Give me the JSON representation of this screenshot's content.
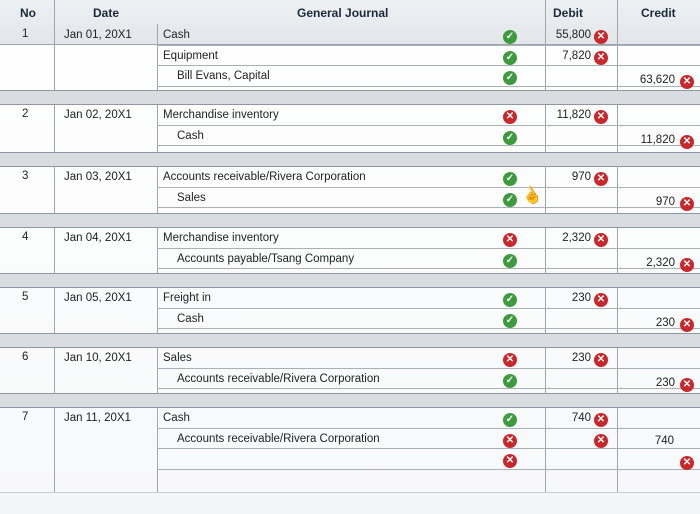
{
  "header": {
    "no": "No",
    "date": "Date",
    "title": "General Journal",
    "debit": "Debit",
    "credit": "Credit"
  },
  "entries": [
    {
      "no": "1",
      "date": "Jan 01, 20X1",
      "lines": [
        {
          "account": "Cash",
          "indent": false,
          "mark": "check",
          "debit": "55,800",
          "credit": ""
        },
        {
          "account": "Equipment",
          "indent": false,
          "mark": "check",
          "debit": "7,820",
          "credit": ""
        },
        {
          "account": "Bill Evans, Capital",
          "indent": true,
          "mark": "check",
          "debit": "",
          "credit": "63,620"
        }
      ]
    },
    {
      "no": "2",
      "date": "Jan 02, 20X1",
      "lines": [
        {
          "account": "Merchandise inventory",
          "indent": false,
          "mark": "error",
          "debit": "11,820",
          "credit": ""
        },
        {
          "account": "Cash",
          "indent": true,
          "mark": "check",
          "debit": "",
          "credit": "11,820"
        }
      ]
    },
    {
      "no": "3",
      "date": "Jan 03, 20X1",
      "lines": [
        {
          "account": "Accounts receivable/Rivera Corporation",
          "indent": false,
          "mark": "check",
          "debit": "970",
          "credit": ""
        },
        {
          "account": "Sales",
          "indent": true,
          "mark": "check",
          "debit": "",
          "credit": "970"
        }
      ]
    },
    {
      "no": "4",
      "date": "Jan 04, 20X1",
      "lines": [
        {
          "account": "Merchandise inventory",
          "indent": false,
          "mark": "error",
          "debit": "2,320",
          "credit": ""
        },
        {
          "account": "Accounts payable/Tsang Company",
          "indent": true,
          "mark": "check",
          "debit": "",
          "credit": "2,320"
        }
      ]
    },
    {
      "no": "5",
      "date": "Jan 05, 20X1",
      "lines": [
        {
          "account": "Freight in",
          "indent": false,
          "mark": "check",
          "debit": "230",
          "credit": ""
        },
        {
          "account": "Cash",
          "indent": true,
          "mark": "check",
          "debit": "",
          "credit": "230"
        }
      ]
    },
    {
      "no": "6",
      "date": "Jan 10, 20X1",
      "lines": [
        {
          "account": "Sales",
          "indent": false,
          "mark": "error",
          "debit": "230",
          "credit": ""
        },
        {
          "account": "Accounts receivable/Rivera Corporation",
          "indent": true,
          "mark": "check",
          "debit": "",
          "credit": "230"
        }
      ]
    },
    {
      "no": "7",
      "date": "Jan 11, 20X1",
      "lines": [
        {
          "account": "Cash",
          "indent": false,
          "mark": "check",
          "debit": "740",
          "credit": ""
        },
        {
          "account": "Accounts receivable/Rivera Corporation",
          "indent": true,
          "mark": "error",
          "debit": "",
          "credit": "740",
          "debit_error_only": true,
          "credit_plain": true
        },
        {
          "account": "",
          "indent": false,
          "mark": "error",
          "debit": "",
          "credit": "",
          "credit_error_only": true
        }
      ]
    }
  ],
  "colors": {
    "check": "#3d9a3d",
    "error": "#c8282b",
    "header_bg": "#e6e9ec"
  },
  "icons": {
    "check": "check-circle-icon",
    "error": "x-circle-icon",
    "cursor": "hand-pointer-icon"
  }
}
